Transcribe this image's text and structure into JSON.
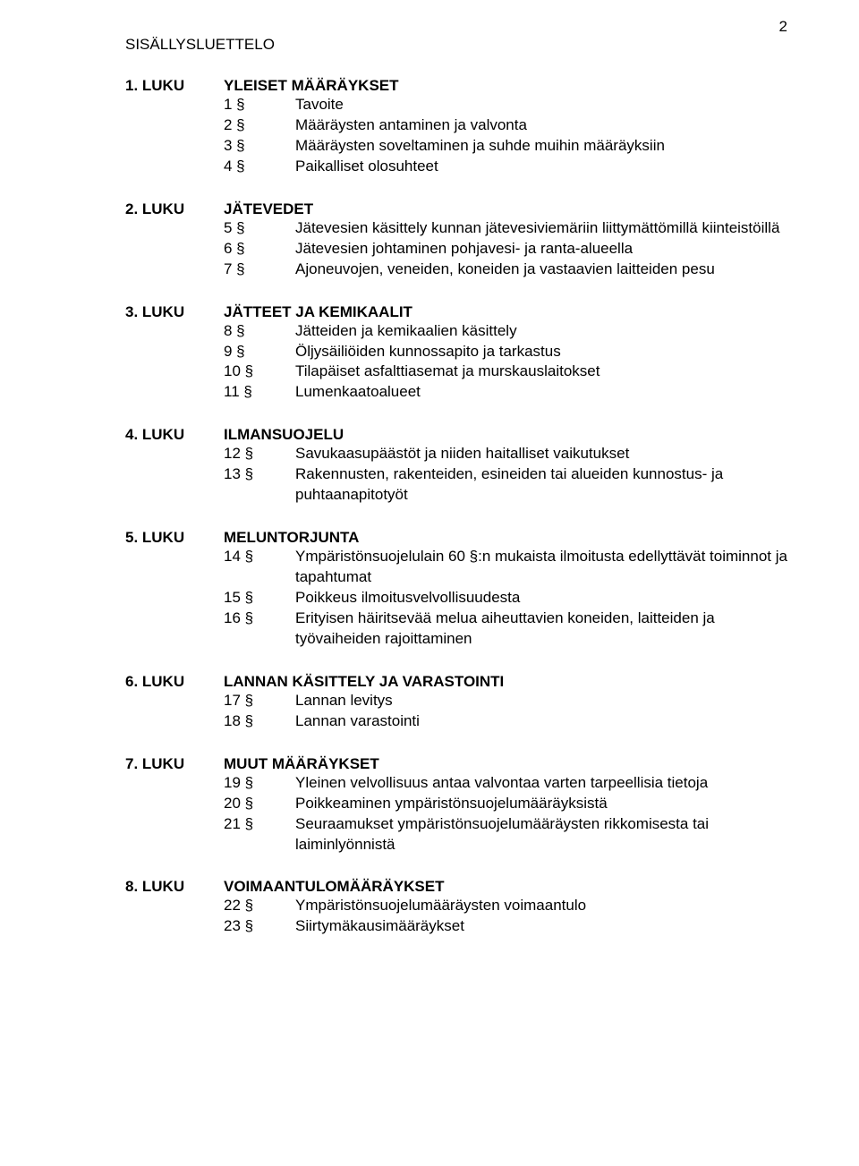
{
  "page_number": "2",
  "doc_title": "SISÄLLYSLUETTELO",
  "typography": {
    "font_family": "Arial",
    "body_fontsize_pt": 13,
    "color": "#000000",
    "background": "#ffffff"
  },
  "chapters": [
    {
      "num": "1. LUKU",
      "title": "YLEISET MÄÄRÄYKSET",
      "items": [
        {
          "num": "1 §",
          "title": "Tavoite"
        },
        {
          "num": "2 §",
          "title": "Määräysten antaminen ja valvonta"
        },
        {
          "num": "3 §",
          "title": "Määräysten soveltaminen ja suhde muihin määräyksiin"
        },
        {
          "num": "4 §",
          "title": "Paikalliset olosuhteet"
        }
      ]
    },
    {
      "num": "2. LUKU",
      "title": "JÄTEVEDET",
      "items": [
        {
          "num": "5 §",
          "title": "Jätevesien käsittely kunnan jätevesiviemäriin liittymättömillä kiinteistöillä"
        },
        {
          "num": "6 §",
          "title": "Jätevesien johtaminen pohjavesi- ja ranta-alueella"
        },
        {
          "num": "7 §",
          "title": "Ajoneuvojen, veneiden, koneiden ja vastaavien laitteiden pesu"
        }
      ]
    },
    {
      "num": "3. LUKU",
      "title": "JÄTTEET JA KEMIKAALIT",
      "items": [
        {
          "num": "8 §",
          "title": "Jätteiden ja kemikaalien käsittely"
        },
        {
          "num": "9 §",
          "title": "Öljysäiliöiden kunnossapito ja tarkastus"
        },
        {
          "num": "10 §",
          "title": "Tilapäiset asfalttiasemat ja murskauslaitokset"
        },
        {
          "num": "11 §",
          "title": "Lumenkaatoalueet"
        }
      ]
    },
    {
      "num": "4. LUKU",
      "title": "ILMANSUOJELU",
      "items": [
        {
          "num": "12 §",
          "title": "Savukaasupäästöt ja niiden haitalliset vaikutukset"
        },
        {
          "num": "13 §",
          "title": "Rakennusten, rakenteiden, esineiden tai alueiden kunnostus- ja puhtaanapitotyöt"
        }
      ]
    },
    {
      "num": "5. LUKU",
      "title": "MELUNTORJUNTA",
      "items": [
        {
          "num": "14 §",
          "title": "Ympäristönsuojelulain 60 §:n mukaista ilmoitusta edellyttävät toiminnot ja tapahtumat"
        },
        {
          "num": "15 §",
          "title": "Poikkeus ilmoitusvelvollisuudesta"
        },
        {
          "num": "16 §",
          "title": "Erityisen häiritsevää melua aiheuttavien koneiden, laitteiden ja työvaiheiden rajoittaminen"
        }
      ]
    },
    {
      "num": "6. LUKU",
      "title": "LANNAN KÄSITTELY JA VARASTOINTI",
      "items": [
        {
          "num": "17 §",
          "title": "Lannan levitys"
        },
        {
          "num": "18 §",
          "title": "Lannan varastointi"
        }
      ]
    },
    {
      "num": "7. LUKU",
      "title": "MUUT MÄÄRÄYKSET",
      "items": [
        {
          "num": "19 §",
          "title": "Yleinen velvollisuus antaa valvontaa varten tarpeellisia tietoja"
        },
        {
          "num": "20 §",
          "title": "Poikkeaminen ympäristönsuojelumääräyksistä"
        },
        {
          "num": "21 §",
          "title": "Seuraamukset ympäristönsuojelumääräysten rikkomisesta tai laiminlyönnistä"
        }
      ]
    },
    {
      "num": "8. LUKU",
      "title": "VOIMAANTULOMÄÄRÄYKSET",
      "items": [
        {
          "num": "22 §",
          "title": "Ympäristönsuojelumääräysten voimaantulo"
        },
        {
          "num": "23 §",
          "title": "Siirtymäkausimääräykset"
        }
      ]
    }
  ]
}
